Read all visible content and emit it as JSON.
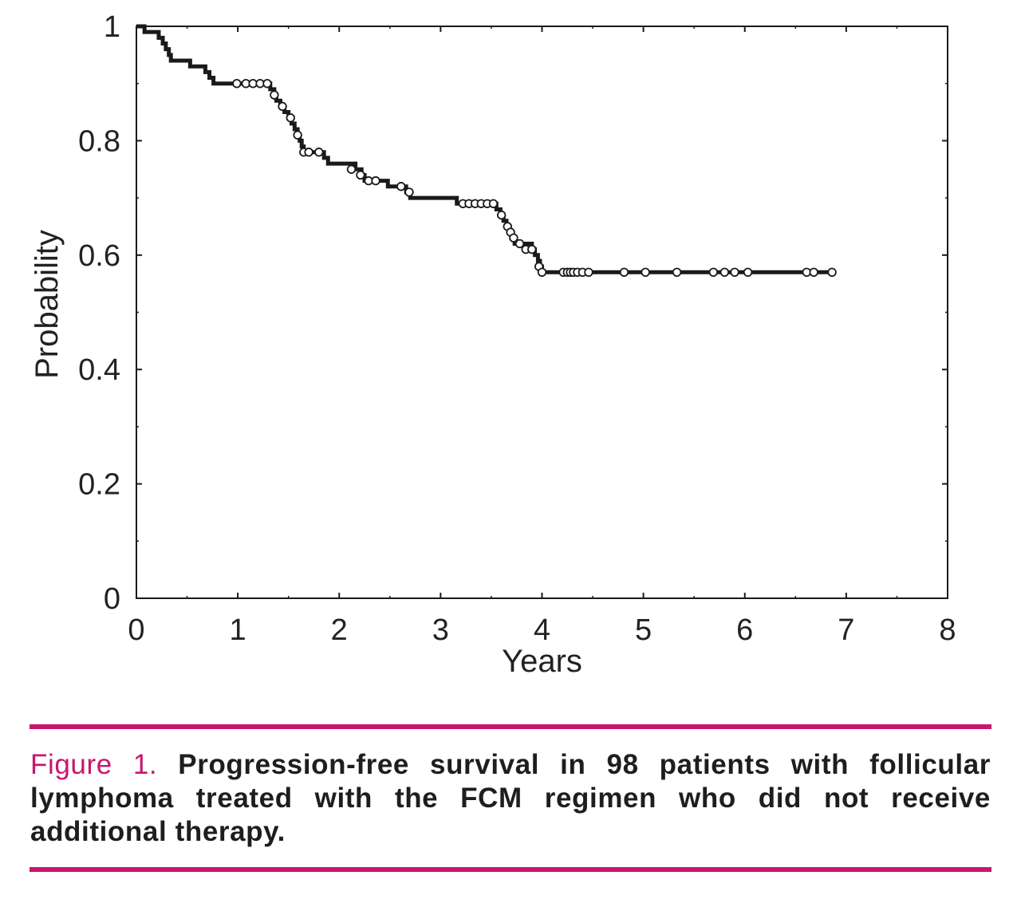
{
  "colors": {
    "accent": "#c8166e",
    "curve": "#1a1a1a",
    "text": "#222222"
  },
  "chart_data": {
    "type": "line",
    "subtype": "kaplan-meier step curve with censor marks",
    "xlabel": "Years",
    "ylabel": "Probability",
    "xlim": [
      0,
      8
    ],
    "ylim": [
      0,
      1
    ],
    "x_ticks": [
      0,
      1,
      2,
      3,
      4,
      5,
      6,
      7,
      8
    ],
    "y_ticks": [
      0,
      0.2,
      0.4,
      0.6,
      0.8,
      1
    ],
    "y_tick_labels": [
      "0",
      "0.2",
      "0.4",
      "0.6",
      "0.8",
      "1"
    ],
    "grid": false,
    "series": [
      {
        "name": "Progression-free survival",
        "steps": [
          [
            0.08,
            0.99
          ],
          [
            0.22,
            0.98
          ],
          [
            0.26,
            0.97
          ],
          [
            0.29,
            0.96
          ],
          [
            0.32,
            0.95
          ],
          [
            0.34,
            0.94
          ],
          [
            0.53,
            0.93
          ],
          [
            0.68,
            0.92
          ],
          [
            0.72,
            0.91
          ],
          [
            0.76,
            0.9
          ],
          [
            1.32,
            0.89
          ],
          [
            1.36,
            0.88
          ],
          [
            1.38,
            0.87
          ],
          [
            1.42,
            0.86
          ],
          [
            1.46,
            0.85
          ],
          [
            1.5,
            0.84
          ],
          [
            1.53,
            0.83
          ],
          [
            1.56,
            0.82
          ],
          [
            1.59,
            0.81
          ],
          [
            1.61,
            0.8
          ],
          [
            1.63,
            0.79
          ],
          [
            1.65,
            0.78
          ],
          [
            1.85,
            0.77
          ],
          [
            1.89,
            0.76
          ],
          [
            2.16,
            0.75
          ],
          [
            2.22,
            0.74
          ],
          [
            2.25,
            0.73
          ],
          [
            2.48,
            0.72
          ],
          [
            2.66,
            0.71
          ],
          [
            2.7,
            0.7
          ],
          [
            3.16,
            0.69
          ],
          [
            3.55,
            0.68
          ],
          [
            3.59,
            0.67
          ],
          [
            3.62,
            0.66
          ],
          [
            3.65,
            0.65
          ],
          [
            3.68,
            0.64
          ],
          [
            3.7,
            0.63
          ],
          [
            3.73,
            0.62
          ],
          [
            3.9,
            0.61
          ],
          [
            3.93,
            0.6
          ],
          [
            3.96,
            0.59
          ],
          [
            3.98,
            0.58
          ],
          [
            4.0,
            0.57
          ]
        ],
        "end_x": 6.88,
        "censored": [
          [
            0.99,
            0.9
          ],
          [
            1.08,
            0.9
          ],
          [
            1.15,
            0.9
          ],
          [
            1.22,
            0.9
          ],
          [
            1.29,
            0.9
          ],
          [
            1.36,
            0.88
          ],
          [
            1.44,
            0.86
          ],
          [
            1.52,
            0.84
          ],
          [
            1.59,
            0.81
          ],
          [
            1.65,
            0.78
          ],
          [
            1.7,
            0.78
          ],
          [
            1.8,
            0.78
          ],
          [
            2.12,
            0.75
          ],
          [
            2.21,
            0.74
          ],
          [
            2.29,
            0.73
          ],
          [
            2.36,
            0.73
          ],
          [
            2.61,
            0.72
          ],
          [
            2.69,
            0.71
          ],
          [
            3.22,
            0.69
          ],
          [
            3.28,
            0.69
          ],
          [
            3.34,
            0.69
          ],
          [
            3.4,
            0.69
          ],
          [
            3.46,
            0.69
          ],
          [
            3.52,
            0.69
          ],
          [
            3.6,
            0.67
          ],
          [
            3.66,
            0.65
          ],
          [
            3.69,
            0.64
          ],
          [
            3.72,
            0.63
          ],
          [
            3.78,
            0.62
          ],
          [
            3.84,
            0.61
          ],
          [
            3.9,
            0.61
          ],
          [
            3.97,
            0.58
          ],
          [
            4.0,
            0.57
          ],
          [
            4.21,
            0.57
          ],
          [
            4.25,
            0.57
          ],
          [
            4.28,
            0.57
          ],
          [
            4.31,
            0.57
          ],
          [
            4.35,
            0.57
          ],
          [
            4.4,
            0.57
          ],
          [
            4.46,
            0.57
          ],
          [
            4.81,
            0.57
          ],
          [
            5.02,
            0.57
          ],
          [
            5.33,
            0.57
          ],
          [
            5.69,
            0.57
          ],
          [
            5.8,
            0.57
          ],
          [
            5.9,
            0.57
          ],
          [
            6.03,
            0.57
          ],
          [
            6.61,
            0.57
          ],
          [
            6.68,
            0.57
          ],
          [
            6.86,
            0.57
          ]
        ]
      }
    ]
  },
  "caption": {
    "label": "Figure 1.",
    "text": " Progression-free survival in 98 patients with follicular lymphoma treated with the FCM regimen who did not receive additional therapy."
  }
}
